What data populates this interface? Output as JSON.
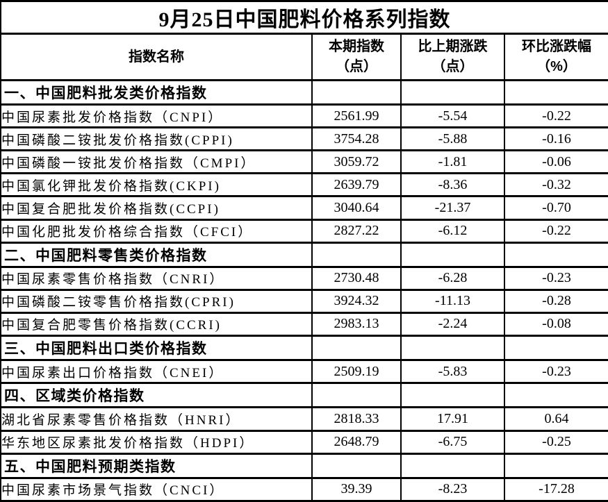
{
  "page_title": "9月25日中国肥料价格系列指数",
  "colors": {
    "border": "#000000",
    "text": "#000000",
    "background": "#ffffff"
  },
  "chart_data": {
    "type": "table",
    "title": "9月25日中国肥料价格系列指数",
    "columns": [
      {
        "line1": "指数名称",
        "line2": ""
      },
      {
        "line1": "本期指数",
        "line2": "（点）"
      },
      {
        "line1": "比上期涨跌",
        "line2": "（点）"
      },
      {
        "line1": "环比涨跌幅",
        "line2": "（%）"
      }
    ],
    "rows": [
      {
        "type": "section",
        "name": "一、中国肥料批发类价格指数",
        "current": "",
        "change": "",
        "pct": ""
      },
      {
        "type": "data",
        "name": "中国尿素批发价格指数（CNPI）",
        "current": "2561.99",
        "change": "-5.54",
        "pct": "-0.22"
      },
      {
        "type": "data",
        "name": "中国磷酸二铵批发价格指数(CPPI)",
        "current": "3754.28",
        "change": "-5.88",
        "pct": "-0.16"
      },
      {
        "type": "data",
        "name": "中国磷酸一铵批发价格指数（CMPI）",
        "current": "3059.72",
        "change": "-1.81",
        "pct": "-0.06"
      },
      {
        "type": "data",
        "name": "中国氯化钾批发价格指数(CKPI)",
        "current": "2639.79",
        "change": "-8.36",
        "pct": "-0.32"
      },
      {
        "type": "data",
        "name": "中国复合肥批发价格指数(CCPI)",
        "current": "3040.64",
        "change": "-21.37",
        "pct": "-0.70"
      },
      {
        "type": "data",
        "name": "中国化肥批发价格综合指数（CFCI）",
        "current": "2827.22",
        "change": "-6.12",
        "pct": "-0.22"
      },
      {
        "type": "section",
        "name": "二、中国肥料零售类价格指数",
        "current": "",
        "change": "",
        "pct": ""
      },
      {
        "type": "data",
        "name": "中国尿素零售价格指数（CNRI）",
        "current": "2730.48",
        "change": "-6.28",
        "pct": "-0.23"
      },
      {
        "type": "data",
        "name": "中国磷酸二铵零售价格指数(CPRI)",
        "current": "3924.32",
        "change": "-11.13",
        "pct": "-0.28"
      },
      {
        "type": "data",
        "name": "中国复合肥零售价格指数(CCRI)",
        "current": "2983.13",
        "change": "-2.24",
        "pct": "-0.08"
      },
      {
        "type": "section",
        "name": "三、中国肥料出口类价格指数",
        "current": "",
        "change": "",
        "pct": ""
      },
      {
        "type": "data",
        "name": "中国尿素出口价格指数（CNEI）",
        "current": "2509.19",
        "change": "-5.83",
        "pct": "-0.23"
      },
      {
        "type": "section",
        "name": "四、区域类价格指数",
        "current": "",
        "change": "",
        "pct": ""
      },
      {
        "type": "data",
        "name": "湖北省尿素零售价格指数（HNRI）",
        "current": "2818.33",
        "change": "17.91",
        "pct": "0.64"
      },
      {
        "type": "data",
        "name": "华东地区尿素批发价格指数（HDPI）",
        "current": "2648.79",
        "change": "-6.75",
        "pct": "-0.25"
      },
      {
        "type": "section",
        "name": "五、中国肥料预期类指数",
        "current": "",
        "change": "",
        "pct": ""
      },
      {
        "type": "data",
        "name": "中国尿素市场景气指数（CNCI）",
        "current": "39.39",
        "change": "-8.23",
        "pct": "-17.28"
      }
    ]
  }
}
